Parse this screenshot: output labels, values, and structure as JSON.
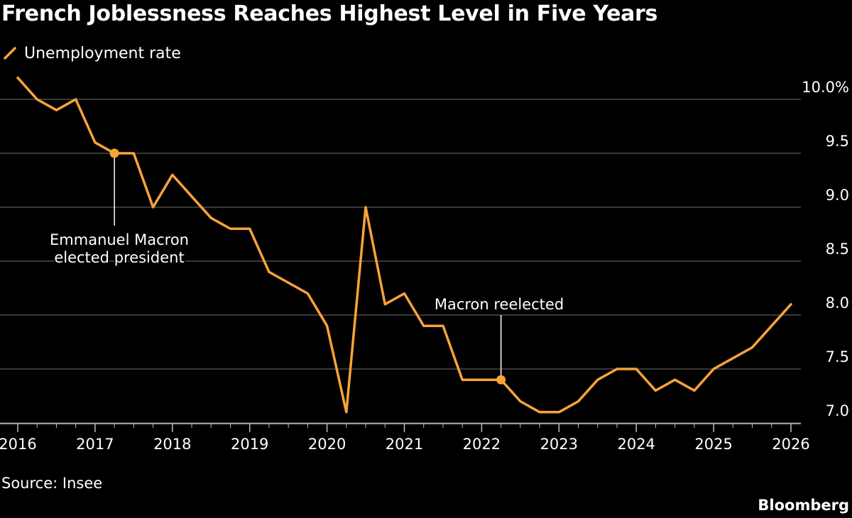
{
  "title": "French Joblessness Reaches Highest Level in Five Years",
  "source": "Source: Insee",
  "brand": "Bloomberg",
  "colors": {
    "background": "#000000",
    "line": "#f7a33a",
    "grid": "#5a5a5a",
    "text": "#ffffff"
  },
  "chart_data": {
    "type": "line",
    "title": "French Joblessness Reaches Highest Level in Five Years",
    "xlabel": "",
    "ylabel": "",
    "legend": "top-left",
    "grid": true,
    "xlim": [
      2016,
      2026
    ],
    "ylim": [
      6.9,
      10.2
    ],
    "y_ticks": [
      10.0,
      9.5,
      9.0,
      8.5,
      8.0,
      7.5,
      7.0
    ],
    "y_tick_labels": [
      "10.0%",
      "9.5",
      "9.0",
      "8.5",
      "8.0",
      "7.5",
      "7.0"
    ],
    "x_ticks": [
      2016,
      2017,
      2018,
      2019,
      2020,
      2021,
      2022,
      2023,
      2024,
      2025,
      2026
    ],
    "x_tick_labels": [
      "2016",
      "2017",
      "2018",
      "2019",
      "2020",
      "2021",
      "2022",
      "2023",
      "2024",
      "2025",
      "2026"
    ],
    "series": [
      {
        "name": "Unemployment rate",
        "x": [
          2016.0,
          2016.25,
          2016.5,
          2016.75,
          2017.0,
          2017.25,
          2017.5,
          2017.75,
          2018.0,
          2018.25,
          2018.5,
          2018.75,
          2019.0,
          2019.25,
          2019.5,
          2019.75,
          2020.0,
          2020.25,
          2020.5,
          2020.75,
          2021.0,
          2021.25,
          2021.5,
          2021.75,
          2022.0,
          2022.25,
          2022.5,
          2022.75,
          2023.0,
          2023.25,
          2023.5,
          2023.75,
          2024.0,
          2024.25,
          2024.5,
          2024.75,
          2025.0,
          2025.25,
          2025.5,
          2025.75,
          2026.0
        ],
        "values": [
          10.2,
          10.0,
          9.9,
          10.0,
          9.6,
          9.5,
          9.5,
          9.0,
          9.3,
          9.1,
          8.9,
          8.8,
          8.8,
          8.4,
          8.3,
          8.2,
          7.9,
          7.1,
          9.0,
          8.1,
          8.2,
          7.9,
          7.9,
          7.4,
          7.4,
          7.4,
          7.2,
          7.1,
          7.1,
          7.2,
          7.4,
          7.5,
          7.5,
          7.3,
          7.4,
          7.3,
          7.5,
          7.6,
          7.7,
          7.9,
          8.1
        ]
      }
    ],
    "annotations": [
      {
        "x": 2017.25,
        "y": 9.5,
        "lines": [
          "Emmanuel Macron",
          "elected president"
        ]
      },
      {
        "x": 2022.25,
        "y": 7.4,
        "lines": [
          "Macron reelected"
        ]
      }
    ]
  }
}
